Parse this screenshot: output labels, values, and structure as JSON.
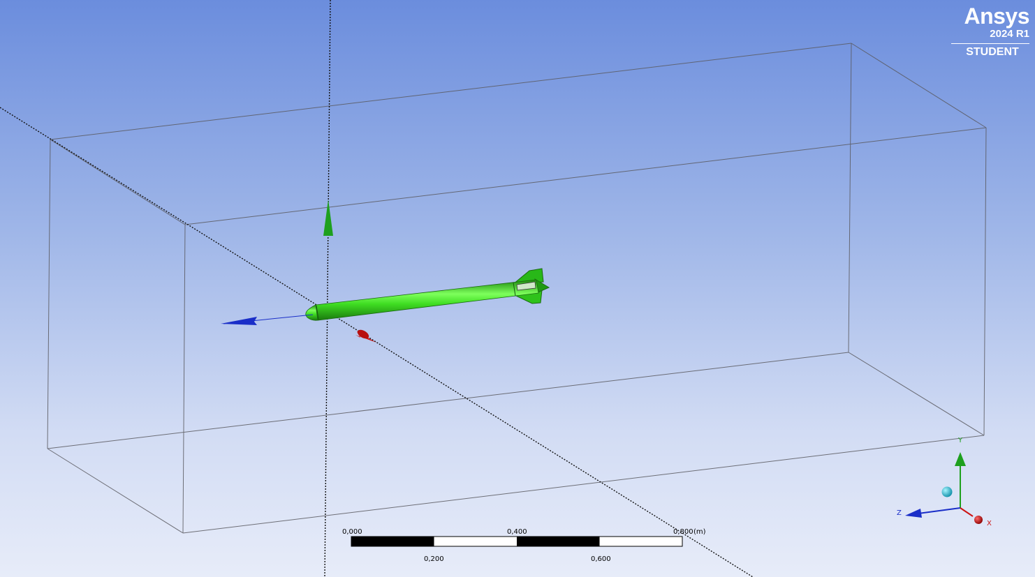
{
  "branding": {
    "name": "Ansys",
    "version": "2024 R1",
    "edition": "STUDENT"
  },
  "scale_bar": {
    "ticks_top": [
      "0,000",
      "0,400",
      "0,800"
    ],
    "ticks_bottom": [
      "0,200",
      "0,600"
    ],
    "unit": "(m)"
  },
  "triad": {
    "x_label": "X",
    "y_label": "Y",
    "z_label": "Z"
  },
  "colors": {
    "background_top": "#6b8ddd",
    "background_bottom": "#e7ecf9",
    "body_green": "#33cc1a",
    "axis_x": "#cc1414",
    "axis_y": "#1ea01e",
    "axis_z": "#1a2ec8",
    "iso_ball": "#19b9d2"
  }
}
